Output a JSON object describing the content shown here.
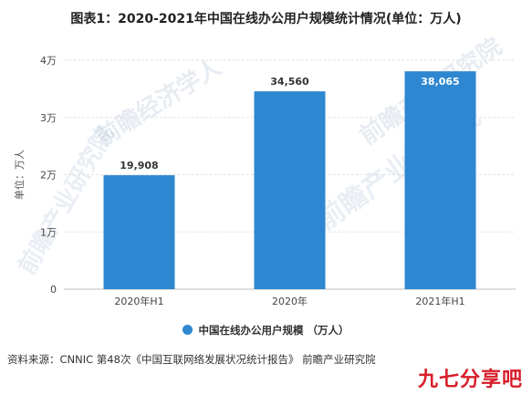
{
  "title": "图表1：2020-2021年中国在线办公用户规模统计情况(单位：万人)",
  "watermarks": {
    "logo_text": "前瞻经济学人",
    "diag_text": "前瞻产业研究院",
    "diag2_text": "前瞻产业研究院",
    "left_text": "前瞻产业研究院",
    "brand_text": "九七分享吧"
  },
  "chart_data": {
    "type": "bar",
    "categories": [
      "2020年H1",
      "2020年",
      "2021年H1"
    ],
    "series": [
      {
        "name": "中国在线办公用户规模（万人）",
        "values": [
          19908,
          34560,
          38065
        ]
      }
    ],
    "data_labels": [
      "19,908",
      "34,560",
      "38,065"
    ],
    "ylabel": "单位：万人",
    "ylim": [
      0,
      40000
    ],
    "yticks": [
      0,
      10000,
      20000,
      30000,
      40000
    ],
    "ytick_labels": [
      "0",
      "1万",
      "2万",
      "3万",
      "4万"
    ],
    "grid": true,
    "legend_position": "bottom",
    "bar_color": "#2e87d0"
  },
  "legend_label": "中国在线办公用户规模 （万人）",
  "source": "资料来源：CNNIC 第48次《中国互联网络发展状况统计报告》 前瞻产业研究院"
}
